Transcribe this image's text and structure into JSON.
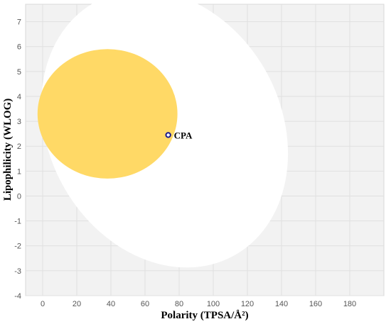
{
  "chart_data": {
    "type": "scatter",
    "xlabel": "Polarity (TPSA/Å²)",
    "ylabel": "Lipophilicity (WLOG)",
    "xlim": [
      -10,
      200
    ],
    "ylim": [
      -4,
      7.7
    ],
    "x_ticks": [
      0,
      20,
      40,
      60,
      80,
      100,
      120,
      140,
      160,
      180
    ],
    "y_ticks": [
      -4,
      -3,
      -2,
      -1,
      0,
      1,
      2,
      3,
      4,
      5,
      6,
      7
    ],
    "grid": true,
    "plot_background": "#f2f2f2",
    "regions": [
      {
        "shape": "ellipse",
        "color": "#ffffff",
        "center": [
          71.5,
          2.7
        ],
        "radii": [
          68.3,
          5.8
        ],
        "rotation_deg": -28
      },
      {
        "shape": "ellipse",
        "color": "#ffd966",
        "center": [
          38,
          3.3
        ],
        "radii": [
          41,
          2.6
        ],
        "rotation_deg": 0
      }
    ],
    "points": [
      {
        "label": "CPA",
        "x": 73.6,
        "y": 2.45,
        "color": "#1a1a8c"
      }
    ]
  }
}
